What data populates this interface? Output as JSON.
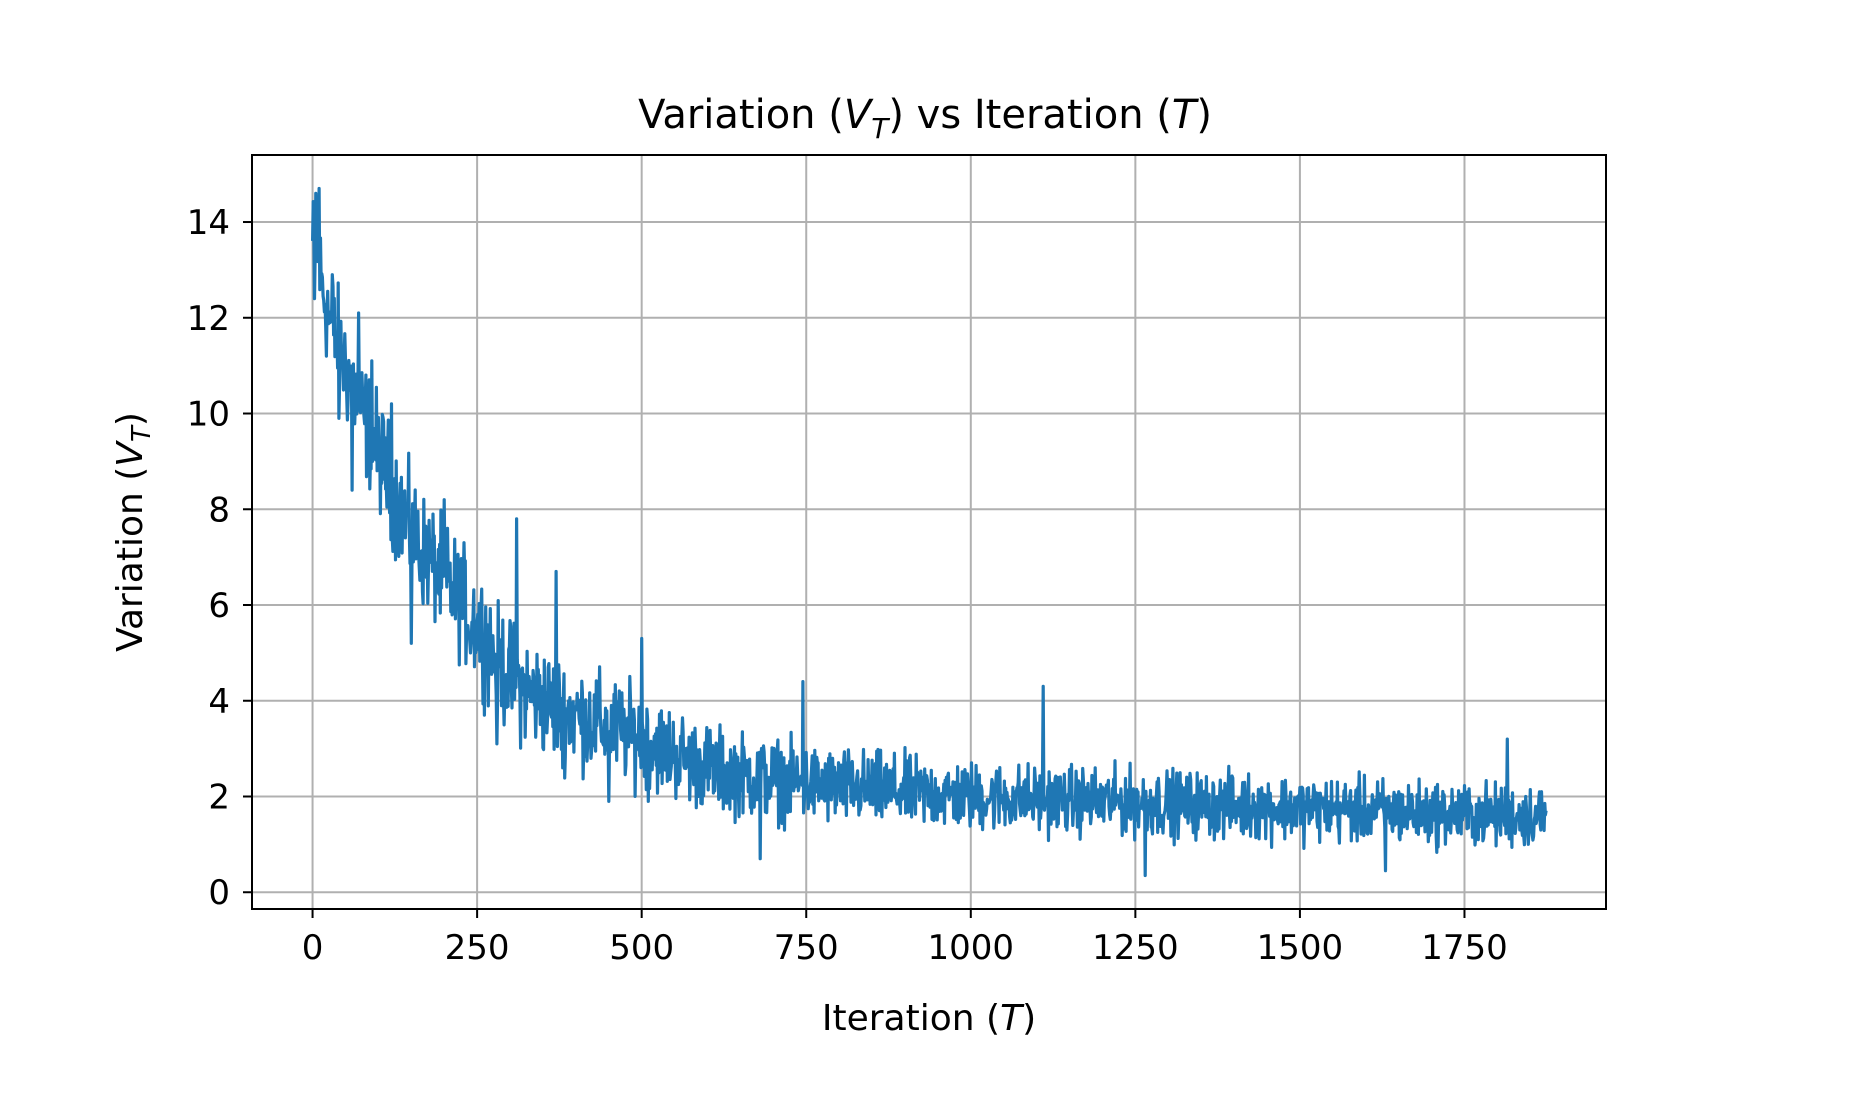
{
  "chart_data": {
    "type": "line",
    "title": {
      "main": "Variation (",
      "var": "V",
      "sub": "T",
      "rest": ") vs Iteration (",
      "var2": "T",
      "end": ")"
    },
    "xlabel": {
      "main": "Iteration (",
      "var": "T",
      "end": ")"
    },
    "ylabel": {
      "main": "Variation (",
      "var": "V",
      "sub": "T",
      "end": ")"
    },
    "xlim": [
      -92,
      1965
    ],
    "ylim": [
      -0.35,
      15.4
    ],
    "xticks": [
      0,
      250,
      500,
      750,
      1000,
      1250,
      1500,
      1750
    ],
    "xtick_labels": [
      "0",
      "250",
      "500",
      "750",
      "1000",
      "1250",
      "1500",
      "1750"
    ],
    "yticks": [
      0,
      2,
      4,
      6,
      8,
      10,
      12,
      14
    ],
    "ytick_labels": [
      "0",
      "2",
      "4",
      "6",
      "8",
      "10",
      "12",
      "14"
    ],
    "grid": true,
    "line_color": "#1f77b4",
    "trend": {
      "x": [
        0,
        10,
        25,
        50,
        75,
        100,
        125,
        150,
        175,
        200,
        225,
        250,
        275,
        300,
        325,
        350,
        375,
        400,
        425,
        450,
        475,
        500,
        525,
        550,
        575,
        600,
        650,
        700,
        750,
        800,
        850,
        900,
        950,
        1000,
        1100,
        1200,
        1300,
        1400,
        1500,
        1600,
        1700,
        1800,
        1875
      ],
      "y": [
        13.5,
        13.0,
        12.0,
        11.0,
        10.0,
        9.2,
        8.3,
        7.5,
        7.0,
        6.5,
        6.1,
        5.6,
        5.0,
        4.5,
        4.2,
        4.0,
        3.8,
        3.7,
        3.55,
        3.45,
        3.35,
        3.2,
        3.05,
        2.9,
        2.75,
        2.6,
        2.45,
        2.35,
        2.25,
        2.2,
        2.15,
        2.1,
        2.05,
        2.0,
        1.95,
        1.9,
        1.85,
        1.8,
        1.75,
        1.7,
        1.65,
        1.6,
        1.6
      ]
    },
    "noise_amplitude": [
      {
        "x": 0,
        "a": 1.0
      },
      {
        "x": 300,
        "a": 1.0
      },
      {
        "x": 600,
        "a": 0.75
      },
      {
        "x": 1000,
        "a": 0.6
      },
      {
        "x": 1875,
        "a": 0.55
      }
    ],
    "spikes": [
      {
        "x": 5,
        "y": 14.6
      },
      {
        "x": 10,
        "y": 14.7
      },
      {
        "x": 3,
        "y": 12.4
      },
      {
        "x": 30,
        "y": 12.9
      },
      {
        "x": 40,
        "y": 9.9
      },
      {
        "x": 60,
        "y": 8.4
      },
      {
        "x": 70,
        "y": 12.1
      },
      {
        "x": 90,
        "y": 11.1
      },
      {
        "x": 120,
        "y": 10.2
      },
      {
        "x": 150,
        "y": 5.2
      },
      {
        "x": 200,
        "y": 8.2
      },
      {
        "x": 240,
        "y": 5.0
      },
      {
        "x": 280,
        "y": 3.1
      },
      {
        "x": 310,
        "y": 7.8
      },
      {
        "x": 370,
        "y": 6.7
      },
      {
        "x": 380,
        "y": 2.6
      },
      {
        "x": 450,
        "y": 1.9
      },
      {
        "x": 500,
        "y": 5.3
      },
      {
        "x": 510,
        "y": 1.9
      },
      {
        "x": 680,
        "y": 0.7
      },
      {
        "x": 745,
        "y": 4.4
      },
      {
        "x": 1110,
        "y": 4.3
      },
      {
        "x": 1265,
        "y": 0.35
      },
      {
        "x": 1630,
        "y": 0.45
      },
      {
        "x": 1815,
        "y": 3.2
      }
    ],
    "n_points": 1875
  }
}
